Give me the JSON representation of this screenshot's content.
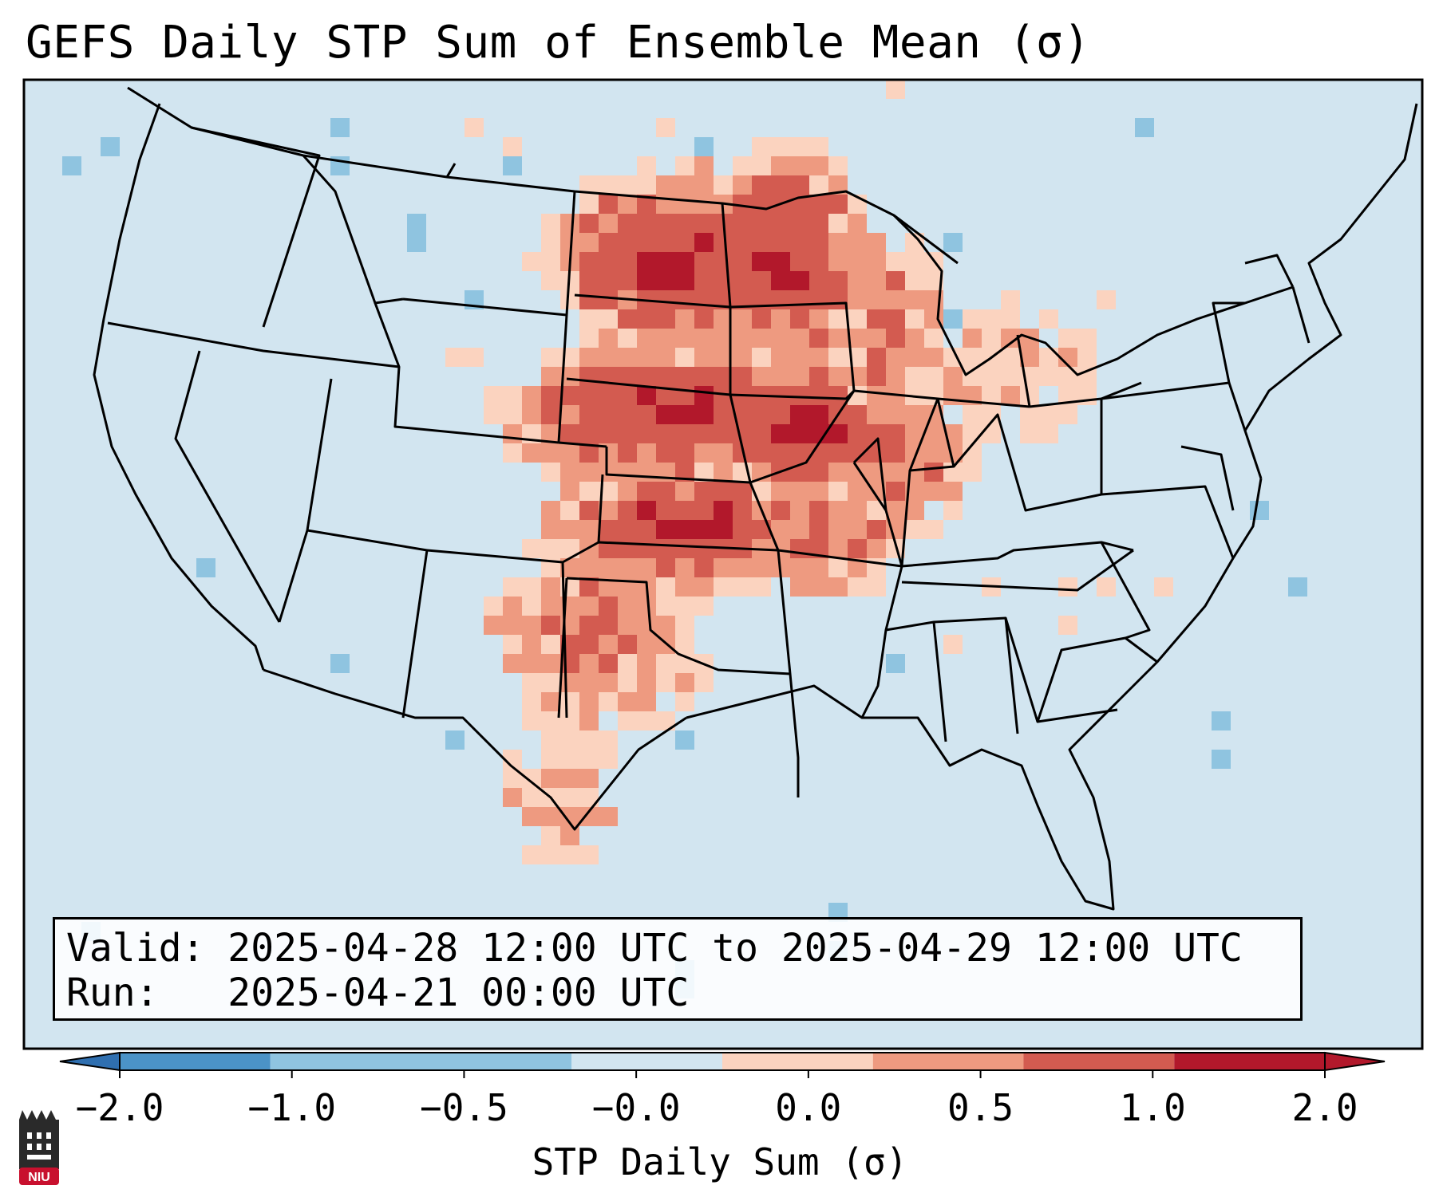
{
  "title": "GEFS Daily STP Sum of Ensemble Mean (σ)",
  "info": {
    "valid_label": "Valid:",
    "valid_value": "2025-04-28 12:00 UTC to 2025-04-29 12:00 UTC",
    "run_label": "Run:",
    "run_value": "2025-04-21 00:00 UTC"
  },
  "colorbar": {
    "label": "STP Daily Sum (σ)",
    "ticks": [
      "−2.0",
      "−1.0",
      "−0.5",
      "−0.0",
      "0.0",
      "0.5",
      "1.0",
      "2.0"
    ],
    "colors": [
      "#2f6fb0",
      "#4b93c7",
      "#8fc4e0",
      "#d2e5f0",
      "#fbfdff",
      "#fbd3bf",
      "#ee9a80",
      "#d35b50",
      "#b2182b"
    ]
  },
  "map": {
    "ocean_color": "#d2e5f0",
    "projection": "Lambert conformal, CONUS",
    "hotspots": [
      {
        "region": "South Dakota / North Dakota",
        "level": 2.0
      },
      {
        "region": "Minnesota",
        "level": 2.0
      },
      {
        "region": "Nebraska",
        "level": 2.0
      },
      {
        "region": "Iowa",
        "level": 2.0
      },
      {
        "region": "Kansas",
        "level": 2.0
      },
      {
        "region": "Wisconsin",
        "level": 1.0
      },
      {
        "region": "Missouri",
        "level": 1.0
      },
      {
        "region": "Illinois",
        "level": 1.0
      },
      {
        "region": "Oklahoma / Texas panhandle",
        "level": 1.0
      },
      {
        "region": "Michigan",
        "level": 0.5
      },
      {
        "region": "West Texas",
        "level": 0.5
      }
    ]
  },
  "logo": {
    "text": "NIU"
  }
}
